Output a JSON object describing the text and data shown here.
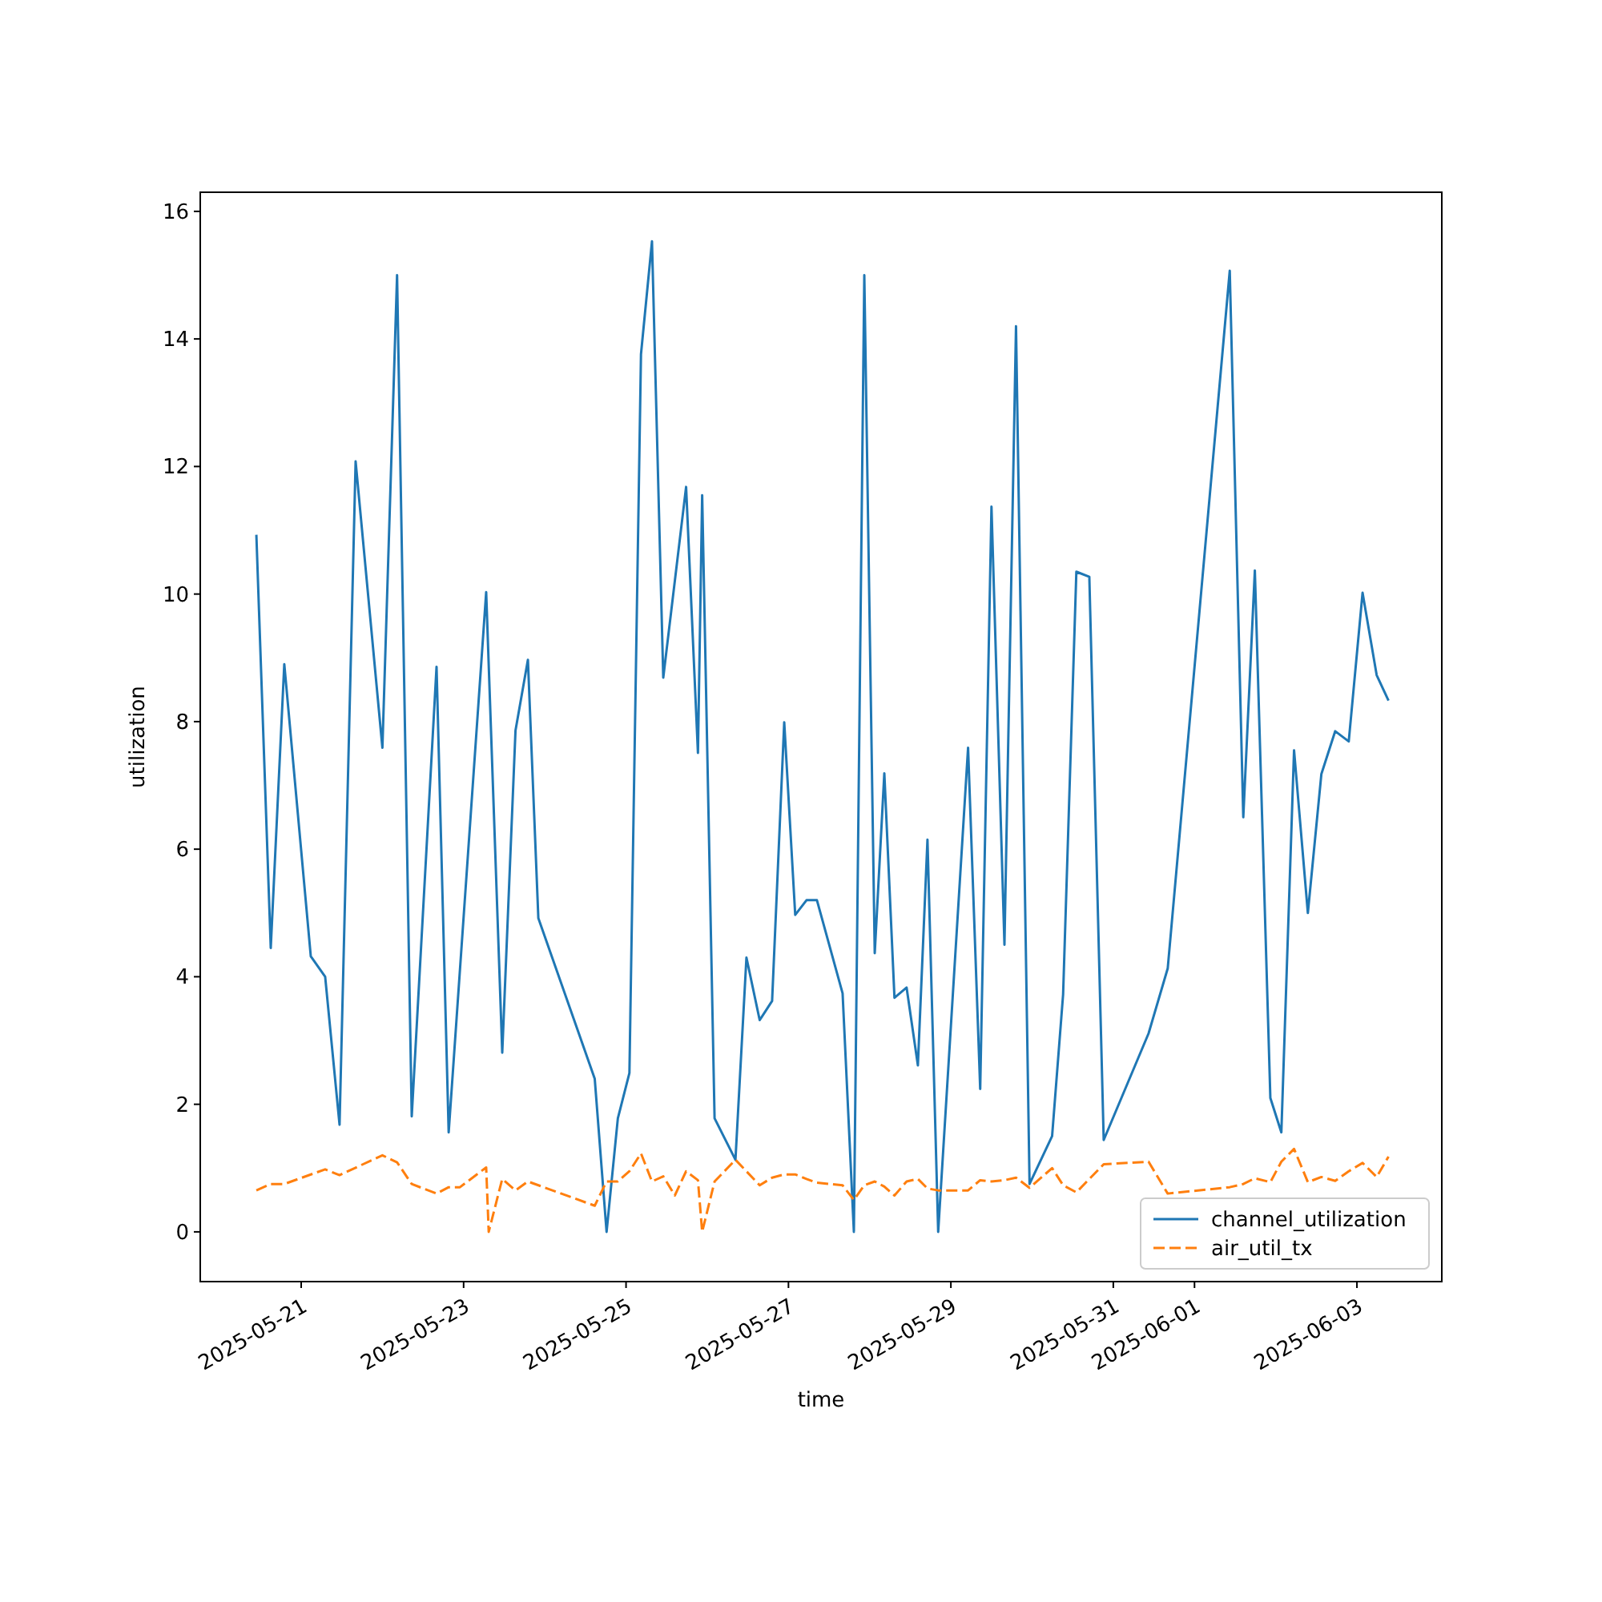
{
  "chart_data": {
    "type": "line",
    "xlabel": "time",
    "ylabel": "utilization",
    "xlim": [
      "2025-05-19T18:10",
      "2025-06-04T01:05"
    ],
    "xticks": [
      "2025-05-21",
      "2025-05-23",
      "2025-05-25",
      "2025-05-27",
      "2025-05-29",
      "2025-05-31",
      "2025-06-01",
      "2025-06-03"
    ],
    "ylim": [
      -0.78,
      16.3
    ],
    "yticks": [
      0,
      2,
      4,
      6,
      8,
      10,
      12,
      14,
      16
    ],
    "legend": "bottom right",
    "grid": false,
    "series": [
      {
        "name": "channel_utilization",
        "color": "#1f77b4",
        "line_style": "solid",
        "x": [
          "2025-05-20T10:45",
          "2025-05-20T15:00",
          "2025-05-20T19:00",
          "2025-05-21T02:50",
          "2025-05-21T07:05",
          "2025-05-21T11:20",
          "2025-05-21T16:05",
          "2025-05-22T00:00",
          "2025-05-22T04:20",
          "2025-05-22T08:40",
          "2025-05-22T16:00",
          "2025-05-22T19:35",
          "2025-05-23T06:40",
          "2025-05-23T11:25",
          "2025-05-23T15:20",
          "2025-05-23T19:00",
          "2025-05-23T22:05",
          "2025-05-24T14:45",
          "2025-05-24T18:15",
          "2025-05-24T21:35",
          "2025-05-25T01:00",
          "2025-05-25T04:25",
          "2025-05-25T07:40",
          "2025-05-25T11:00",
          "2025-05-25T17:45",
          "2025-05-25T21:15",
          "2025-05-25T22:30",
          "2025-05-26T02:10",
          "2025-05-26T08:20",
          "2025-05-26T11:35",
          "2025-05-26T15:30",
          "2025-05-26T19:10",
          "2025-05-26T22:45",
          "2025-05-27T02:00",
          "2025-05-27T05:20",
          "2025-05-27T08:25",
          "2025-05-27T16:00",
          "2025-05-27T19:20",
          "2025-05-27T22:25",
          "2025-05-28T01:30",
          "2025-05-28T04:20",
          "2025-05-28T07:20",
          "2025-05-28T10:55",
          "2025-05-28T14:15",
          "2025-05-28T17:05",
          "2025-05-28T20:15",
          "2025-05-29T05:05",
          "2025-05-29T08:40",
          "2025-05-29T12:00",
          "2025-05-29T15:50",
          "2025-05-29T19:15",
          "2025-05-29T23:15",
          "2025-05-30T05:55",
          "2025-05-30T09:10",
          "2025-05-30T13:05",
          "2025-05-30T16:55",
          "2025-05-30T21:10",
          "2025-05-31T10:25",
          "2025-05-31T16:05",
          "2025-06-01T10:25",
          "2025-06-01T14:25",
          "2025-06-01T17:50",
          "2025-06-01T22:25",
          "2025-06-02T01:40",
          "2025-06-02T05:25",
          "2025-06-02T09:30",
          "2025-06-02T13:30",
          "2025-06-02T17:35",
          "2025-06-02T21:35",
          "2025-06-03T01:40",
          "2025-06-03T05:50",
          "2025-06-03T09:20"
        ],
        "values": [
          10.93,
          4.45,
          8.9,
          4.32,
          4.0,
          1.68,
          12.08,
          7.59,
          15.0,
          1.81,
          8.86,
          1.56,
          10.03,
          2.81,
          7.86,
          8.97,
          4.92,
          2.4,
          0,
          1.78,
          2.49,
          13.76,
          15.53,
          8.69,
          11.68,
          7.51,
          11.55,
          1.78,
          1.13,
          4.3,
          3.32,
          3.62,
          7.99,
          4.97,
          5.2,
          5.2,
          3.74,
          0,
          15.0,
          4.37,
          7.19,
          3.67,
          3.83,
          2.61,
          6.15,
          0,
          7.59,
          2.24,
          11.37,
          4.5,
          14.2,
          0.75,
          1.5,
          3.72,
          10.35,
          10.27,
          1.44,
          3.11,
          4.13,
          15.07,
          6.5,
          10.37,
          2.1,
          1.56,
          7.55,
          5.0,
          7.18,
          7.85,
          7.69,
          10.02,
          8.73,
          8.33
        ]
      },
      {
        "name": "air_util_tx",
        "color": "#ff7f0e",
        "line_style": "dashed",
        "x": [
          "2025-05-20T10:45",
          "2025-05-20T15:00",
          "2025-05-20T19:00",
          "2025-05-21T07:05",
          "2025-05-21T11:20",
          "2025-05-22T00:00",
          "2025-05-22T04:20",
          "2025-05-22T08:40",
          "2025-05-22T16:00",
          "2025-05-22T19:35",
          "2025-05-22T22:55",
          "2025-05-23T06:40",
          "2025-05-23T07:25",
          "2025-05-23T11:25",
          "2025-05-23T15:20",
          "2025-05-23T19:00",
          "2025-05-24T14:45",
          "2025-05-24T18:15",
          "2025-05-24T21:35",
          "2025-05-25T01:00",
          "2025-05-25T04:25",
          "2025-05-25T07:40",
          "2025-05-25T11:00",
          "2025-05-25T14:25",
          "2025-05-25T17:45",
          "2025-05-25T21:15",
          "2025-05-25T22:30",
          "2025-05-26T02:10",
          "2025-05-26T08:20",
          "2025-05-26T15:30",
          "2025-05-26T19:10",
          "2025-05-26T22:45",
          "2025-05-27T02:00",
          "2025-05-27T05:20",
          "2025-05-27T08:25",
          "2025-05-27T16:00",
          "2025-05-27T19:20",
          "2025-05-27T22:25",
          "2025-05-28T01:30",
          "2025-05-28T04:20",
          "2025-05-28T07:20",
          "2025-05-28T10:55",
          "2025-05-28T14:15",
          "2025-05-28T17:05",
          "2025-05-28T20:15",
          "2025-05-29T05:05",
          "2025-05-29T08:40",
          "2025-05-29T12:00",
          "2025-05-29T15:50",
          "2025-05-29T19:15",
          "2025-05-29T23:15",
          "2025-05-30T05:55",
          "2025-05-30T09:10",
          "2025-05-30T13:05",
          "2025-05-30T21:10",
          "2025-05-31T10:25",
          "2025-05-31T16:05",
          "2025-06-01T10:25",
          "2025-06-01T14:25",
          "2025-06-01T17:50",
          "2025-06-01T22:25",
          "2025-06-02T01:40",
          "2025-06-02T05:25",
          "2025-06-02T09:30",
          "2025-06-02T13:30",
          "2025-06-02T17:35",
          "2025-06-02T21:35",
          "2025-06-03T01:40",
          "2025-06-03T05:50",
          "2025-06-03T09:20"
        ],
        "values": [
          0.65,
          0.75,
          0.75,
          0.98,
          0.89,
          1.2,
          1.09,
          0.75,
          0.6,
          0.7,
          0.7,
          1.01,
          0,
          0.83,
          0.65,
          0.79,
          0.41,
          0.79,
          0.79,
          0.95,
          1.23,
          0.79,
          0.87,
          0.57,
          0.95,
          0.81,
          0,
          0.79,
          1.13,
          0.73,
          0.85,
          0.9,
          0.9,
          0.83,
          0.77,
          0.73,
          0.5,
          0.73,
          0.79,
          0.71,
          0.57,
          0.79,
          0.83,
          0.68,
          0.65,
          0.65,
          0.81,
          0.79,
          0.81,
          0.85,
          0.69,
          1.0,
          0.73,
          0.62,
          1.06,
          1.1,
          0.6,
          0.7,
          0.75,
          0.84,
          0.78,
          1.1,
          1.3,
          0.78,
          0.86,
          0.8,
          0.95,
          1.08,
          0.86,
          1.18
        ]
      }
    ]
  }
}
